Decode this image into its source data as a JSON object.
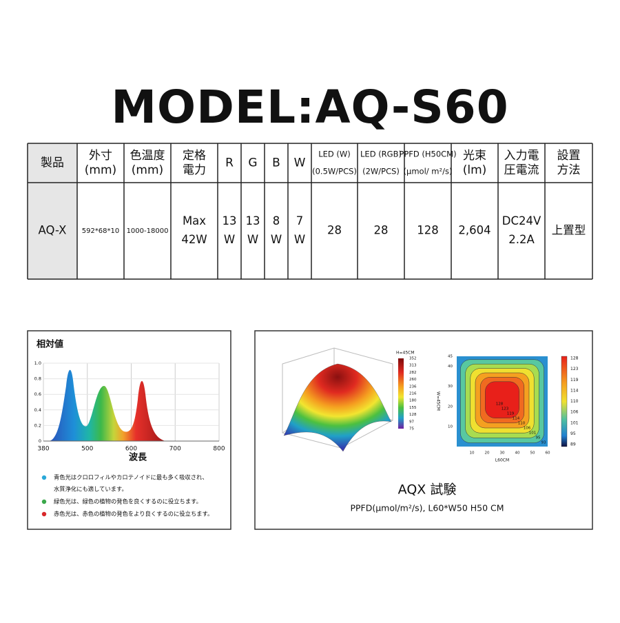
{
  "header": {
    "title": "MODEL:AQ-S60"
  },
  "table": {
    "headers": [
      [
        "製品"
      ],
      [
        "外寸",
        "(mm)"
      ],
      [
        "色温度",
        "(mm)"
      ],
      [
        "定格",
        "電力"
      ],
      [
        "R"
      ],
      [
        "G"
      ],
      [
        "B"
      ],
      [
        "W"
      ],
      [
        "LED (W)",
        "(0.5W/PCS)"
      ],
      [
        "LED (RGB)",
        "(2W/PCS)"
      ],
      [
        "PPFD (H50CM)",
        "(μmol/ m²/s)"
      ],
      [
        "光束",
        "(lm)"
      ],
      [
        "入力電",
        "圧電流"
      ],
      [
        "設置",
        "方法"
      ]
    ],
    "rows": [
      [
        [
          "AQ-X"
        ],
        [
          "592*68*10"
        ],
        [
          "1000-18000"
        ],
        [
          "Max",
          "42W"
        ],
        [
          "13",
          "W"
        ],
        [
          "13",
          "W"
        ],
        [
          "8",
          "W"
        ],
        [
          "7",
          "W"
        ],
        [
          "28"
        ],
        [
          "28"
        ],
        [
          "128"
        ],
        [
          "2,604"
        ],
        [
          "DC24V",
          "2.2A"
        ],
        [
          "上置型"
        ]
      ]
    ]
  },
  "spectrum": {
    "title": "相対値",
    "x_label": "波長",
    "x_ticks": [
      "380",
      "500",
      "600",
      "700",
      "800"
    ],
    "y_ticks": [
      "0",
      "0.2",
      "0.4",
      "0.6",
      "0.8",
      "1.0"
    ],
    "notes": [
      [
        "青色光はクロロフィルやカロテノイドに最も多く吸収され、",
        "水質浄化にも適しています。"
      ],
      [
        "緑色光は、緑色の植物の発色を良くするのに役立ちます。"
      ],
      [
        "赤色光は、赤色の植物の発色をより良くするのに役立ちます。"
      ]
    ]
  },
  "test": {
    "caption": "AQX 試験",
    "subtitle": "PPFD(μmol/m²/s), L60*W50 H50 CM",
    "heatmap3d": {
      "colorbar_title": "H=45CM",
      "colorbar_labels": [
        "352",
        "313",
        "282",
        "260",
        "236",
        "216",
        "180",
        "155",
        "128",
        "97",
        "75"
      ]
    },
    "heatmap2d": {
      "x_label": "L60CM",
      "y_label": "W=45CM",
      "x_ticks": [
        10,
        20,
        30,
        40,
        50,
        60
      ],
      "y_ticks": [
        10,
        20,
        30,
        40,
        45
      ],
      "colorbar_labels": [
        "128",
        "123",
        "119",
        "114",
        "110",
        "106",
        "101",
        "95",
        "89"
      ],
      "contour_labels": [
        "128",
        "123",
        "119",
        "114",
        "110",
        "106",
        "101",
        "95",
        "93"
      ]
    }
  }
}
